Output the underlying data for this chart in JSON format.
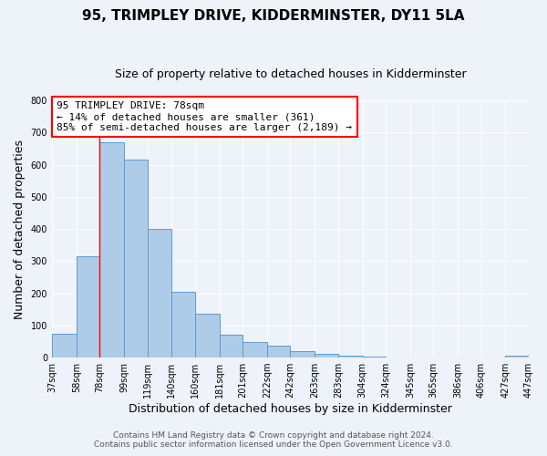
{
  "title": "95, TRIMPLEY DRIVE, KIDDERMINSTER, DY11 5LA",
  "subtitle": "Size of property relative to detached houses in Kidderminster",
  "xlabel": "Distribution of detached houses by size in Kidderminster",
  "ylabel": "Number of detached properties",
  "bin_edges": [
    37,
    58,
    78,
    99,
    119,
    140,
    160,
    181,
    201,
    222,
    242,
    263,
    283,
    304,
    324,
    345,
    365,
    386,
    406,
    427,
    447
  ],
  "bar_heights": [
    75,
    315,
    670,
    615,
    400,
    205,
    137,
    70,
    48,
    38,
    20,
    12,
    5,
    2,
    1,
    1,
    1,
    0,
    0,
    5
  ],
  "bar_color": "#aecce8",
  "bar_edge_color": "#5b9bd5",
  "property_line_x": 78,
  "ylim": [
    0,
    800
  ],
  "yticks": [
    0,
    100,
    200,
    300,
    400,
    500,
    600,
    700,
    800
  ],
  "annotation_line1": "95 TRIMPLEY DRIVE: 78sqm",
  "annotation_line2": "← 14% of detached houses are smaller (361)",
  "annotation_line3": "85% of semi-detached houses are larger (2,189) →",
  "footer_line1": "Contains HM Land Registry data © Crown copyright and database right 2024.",
  "footer_line2": "Contains public sector information licensed under the Open Government Licence v3.0.",
  "tick_labels": [
    "37sqm",
    "58sqm",
    "78sqm",
    "99sqm",
    "119sqm",
    "140sqm",
    "160sqm",
    "181sqm",
    "201sqm",
    "222sqm",
    "242sqm",
    "263sqm",
    "283sqm",
    "304sqm",
    "324sqm",
    "345sqm",
    "365sqm",
    "386sqm",
    "406sqm",
    "427sqm",
    "447sqm"
  ],
  "background_color": "#eef2f9",
  "grid_color": "#ffffff",
  "title_fontsize": 11,
  "subtitle_fontsize": 9,
  "axis_label_fontsize": 9,
  "tick_fontsize": 7,
  "annotation_fontsize": 8,
  "footer_fontsize": 6.5
}
